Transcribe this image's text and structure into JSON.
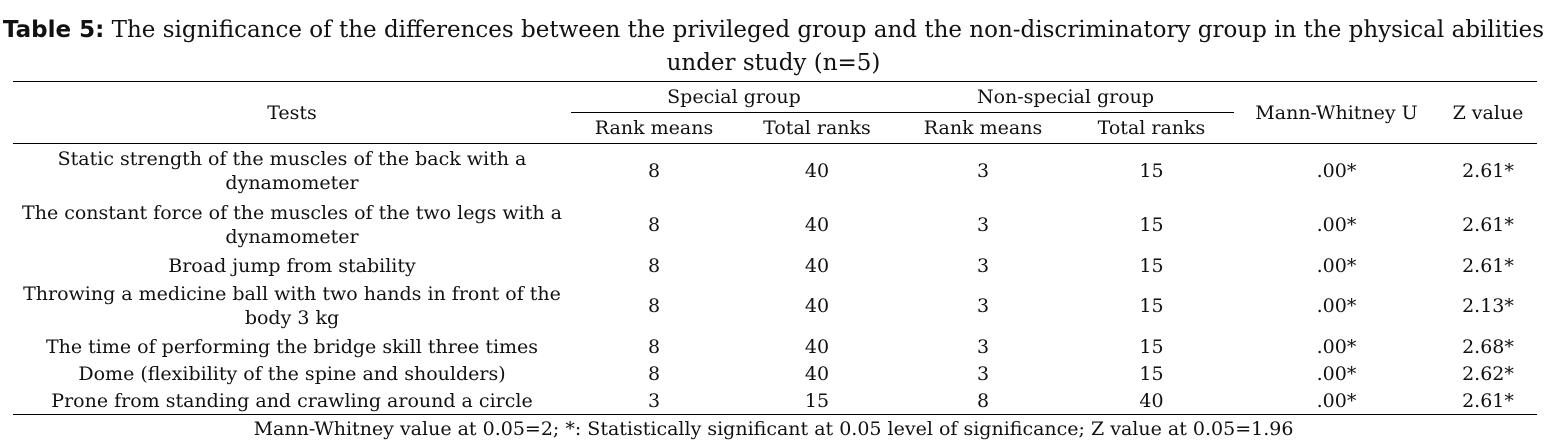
{
  "caption": {
    "label": "Table 5:",
    "text": "The significance of the differences between the privileged group and the non-discriminatory group in the physical abilities under study (n=5)"
  },
  "header": {
    "tests": "Tests",
    "special_group": "Special group",
    "non_special_group": "Non-special group",
    "mann_whitney": "Mann-Whitney U",
    "z_value": "Z value",
    "rank_means": "Rank means",
    "total_ranks": "Total ranks"
  },
  "rows": [
    {
      "test": "Static strength of the muscles of the back with a dynamometer",
      "special_rank_mean": "8",
      "special_total": "40",
      "nonspecial_rank_mean": "3",
      "nonspecial_total": "15",
      "mann_whitney": ".00*",
      "z": "2.61*"
    },
    {
      "test": "The constant force of the muscles of the two legs with a dynamometer",
      "special_rank_mean": "8",
      "special_total": "40",
      "nonspecial_rank_mean": "3",
      "nonspecial_total": "15",
      "mann_whitney": ".00*",
      "z": "2.61*"
    },
    {
      "test": "Broad jump from stability",
      "special_rank_mean": "8",
      "special_total": "40",
      "nonspecial_rank_mean": "3",
      "nonspecial_total": "15",
      "mann_whitney": ".00*",
      "z": "2.61*"
    },
    {
      "test": "Throwing a medicine ball with two hands in front of the body 3 kg",
      "special_rank_mean": "8",
      "special_total": "40",
      "nonspecial_rank_mean": "3",
      "nonspecial_total": "15",
      "mann_whitney": ".00*",
      "z": "2.13*"
    },
    {
      "test": "The time of performing the bridge skill three times",
      "special_rank_mean": "8",
      "special_total": "40",
      "nonspecial_rank_mean": "3",
      "nonspecial_total": "15",
      "mann_whitney": ".00*",
      "z": "2.68*"
    },
    {
      "test": "Dome (flexibility of the spine and shoulders)",
      "special_rank_mean": "8",
      "special_total": "40",
      "nonspecial_rank_mean": "3",
      "nonspecial_total": "15",
      "mann_whitney": ".00*",
      "z": "2.62*"
    },
    {
      "test": "Prone from standing and crawling around a circle",
      "special_rank_mean": "3",
      "special_total": "15",
      "nonspecial_rank_mean": "8",
      "nonspecial_total": "40",
      "mann_whitney": ".00*",
      "z": "2.61*"
    }
  ],
  "footnote": "Mann-Whitney value at 0.05=2; *: Statistically significant at 0.05 level of significance; Z value at 0.05=1.96"
}
